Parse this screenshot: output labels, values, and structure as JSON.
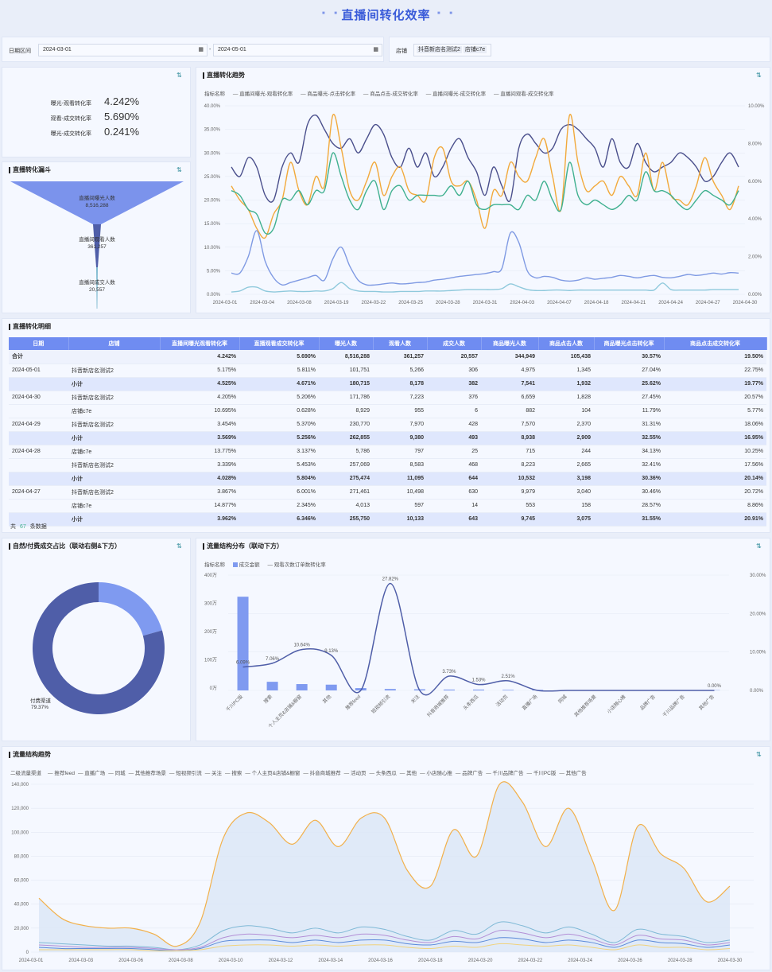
{
  "header": {
    "title": "直播间转化效率"
  },
  "filters": {
    "date_label": "日期区间",
    "date_start": "2024-03-01",
    "date_sep": "-",
    "date_end": "2024-05-01",
    "store_label": "店铺",
    "store_tags": [
      "抖音新店名测试2",
      "店铺c7e"
    ]
  },
  "kpis": [
    {
      "label": "曝光-观看转化率",
      "value": "4.242%"
    },
    {
      "label": "观看-成交转化率",
      "value": "5.690%"
    },
    {
      "label": "曝光-成交转化率",
      "value": "0.241%"
    }
  ],
  "funnel": {
    "title": "直播转化漏斗",
    "stages": [
      {
        "name": "直播间曝光人数",
        "value": "8,516,288"
      },
      {
        "name": "直播间观看人数",
        "value": "361,257"
      },
      {
        "name": "直播间成交人数",
        "value": "20,557"
      }
    ]
  },
  "trend": {
    "title": "直播转化趋势",
    "legend_prefix": "指标名称",
    "series_names": [
      "直播间曝光-观看转化率",
      "商品曝光-点击转化率",
      "商品点击-成交转化率",
      "直播间曝光-成交转化率",
      "直播间观看-成交转化率"
    ],
    "colors": [
      "#4a4f8c",
      "#f2a93b",
      "#3fb08f",
      "#7f9ae3",
      "#8fc9dc"
    ],
    "y_left": [
      "40.00%",
      "35.00%",
      "30.00%",
      "25.00%",
      "20.00%",
      "15.00%",
      "10.00%",
      "5.00%",
      "0.00%"
    ],
    "y_right": [
      "10.00%",
      "8.00%",
      "6.00%",
      "4.00%",
      "2.00%",
      "0.00%"
    ],
    "x_labels": [
      "2024-03-01",
      "2024-03-04",
      "2024-03-08",
      "2024-03-19",
      "2024-03-22",
      "2024-03-25",
      "2024-03-28",
      "2024-03-31",
      "2024-04-03",
      "2024-04-07",
      "2024-04-18",
      "2024-04-21",
      "2024-04-24",
      "2024-04-27",
      "2024-04-30"
    ]
  },
  "detail": {
    "title": "直播转化明细",
    "columns": [
      "日期",
      "店铺",
      "直播间曝光观看转化率",
      "直播观看成交转化率",
      "曝光人数",
      "观看人数",
      "成交人数",
      "商品曝光人数",
      "商品点击人数",
      "商品曝光点击转化率",
      "商品点击成交转化率"
    ],
    "rows": [
      {
        "type": "tot",
        "c": [
          "合计",
          "",
          "4.242%",
          "5.690%",
          "8,516,288",
          "361,257",
          "20,557",
          "344,949",
          "105,438",
          "30.57%",
          "19.50%"
        ]
      },
      {
        "type": "row",
        "c": [
          "2024-05-01",
          "抖音新店名测试2",
          "5.175%",
          "5.811%",
          "101,751",
          "5,266",
          "306",
          "4,975",
          "1,345",
          "27.04%",
          "22.75%"
        ]
      },
      {
        "type": "sub",
        "c": [
          "",
          "小计",
          "4.525%",
          "4.671%",
          "180,715",
          "8,178",
          "382",
          "7,541",
          "1,932",
          "25.62%",
          "19.77%"
        ]
      },
      {
        "type": "row",
        "c": [
          "2024-04-30",
          "抖音新店名测试2",
          "4.205%",
          "5.206%",
          "171,786",
          "7,223",
          "376",
          "6,659",
          "1,828",
          "27.45%",
          "20.57%"
        ]
      },
      {
        "type": "row",
        "c": [
          "",
          "店铺c7e",
          "10.695%",
          "0.628%",
          "8,929",
          "955",
          "6",
          "882",
          "104",
          "11.79%",
          "5.77%"
        ]
      },
      {
        "type": "row",
        "c": [
          "2024-04-29",
          "抖音新店名测试2",
          "3.454%",
          "5.370%",
          "230,770",
          "7,970",
          "428",
          "7,570",
          "2,370",
          "31.31%",
          "18.06%"
        ]
      },
      {
        "type": "sub",
        "c": [
          "",
          "小计",
          "3.569%",
          "5.256%",
          "262,855",
          "9,380",
          "493",
          "8,938",
          "2,909",
          "32.55%",
          "16.95%"
        ]
      },
      {
        "type": "row",
        "c": [
          "2024-04-28",
          "店铺c7e",
          "13.775%",
          "3.137%",
          "5,786",
          "797",
          "25",
          "715",
          "244",
          "34.13%",
          "10.25%"
        ]
      },
      {
        "type": "row",
        "c": [
          "",
          "抖音新店名测试2",
          "3.339%",
          "5.453%",
          "257,069",
          "8,583",
          "468",
          "8,223",
          "2,665",
          "32.41%",
          "17.56%"
        ]
      },
      {
        "type": "sub",
        "c": [
          "",
          "小计",
          "4.028%",
          "5.804%",
          "275,474",
          "11,095",
          "644",
          "10,532",
          "3,198",
          "30.36%",
          "20.14%"
        ]
      },
      {
        "type": "row",
        "c": [
          "2024-04-27",
          "抖音新店名测试2",
          "3.867%",
          "6.001%",
          "271,461",
          "10,498",
          "630",
          "9,979",
          "3,040",
          "30.46%",
          "20.72%"
        ]
      },
      {
        "type": "row",
        "c": [
          "",
          "店铺c7e",
          "14.877%",
          "2.345%",
          "4,013",
          "597",
          "14",
          "553",
          "158",
          "28.57%",
          "8.86%"
        ]
      },
      {
        "type": "sub",
        "c": [
          "",
          "小计",
          "3.962%",
          "6.346%",
          "255,750",
          "10,133",
          "643",
          "9,745",
          "3,075",
          "31.55%",
          "20.91%"
        ]
      }
    ],
    "footer_prefix": "共",
    "footer_count": "67",
    "footer_suffix": "条数据"
  },
  "donut": {
    "title": "自然/付费成交占比（联动右侧&下方）",
    "label": "付费渠道",
    "pct": "79.37%",
    "paid_fraction": 0.7937,
    "colors": [
      "#4f5ea8",
      "#7f9af0"
    ]
  },
  "flow": {
    "title": "流量结构分布（联动下方）",
    "legend_prefix": "指标名称",
    "legend_bar": "成交金额",
    "legend_line": "观看次数订单数转化率",
    "y_left": [
      "400万",
      "300万",
      "200万",
      "100万",
      "0万"
    ],
    "y_right": [
      "30.00%",
      "20.00%",
      "10.00%",
      "0.00%"
    ],
    "categories": [
      "千川PC版",
      "搜索",
      "个人主页&店铺&橱窗",
      "其他",
      "推荐feed",
      "短视频引流",
      "关注",
      "抖音商城推荐",
      "头条西瓜",
      "活动页",
      "直播广场",
      "同城",
      "其他推荐场景",
      "小店随心推",
      "品牌广告",
      "千川品牌广告",
      "其他广告"
    ],
    "bar_values": [
      325,
      30,
      22,
      20,
      8,
      5,
      4,
      3,
      3,
      2,
      2,
      1,
      1,
      1,
      1,
      1,
      1
    ],
    "line_values": [
      6.09,
      7.06,
      10.64,
      9.13,
      0,
      27.82,
      0,
      3.73,
      1.53,
      2.51,
      0,
      0,
      0,
      0,
      0,
      0,
      0
    ],
    "line_labels": [
      "6.09%",
      "7.06%",
      "10.64%",
      "9.13%",
      "",
      "27.82%",
      "",
      "3.73%",
      "1.53%",
      "2.51%",
      "",
      "",
      "",
      "",
      "",
      "",
      "0.00%"
    ]
  },
  "struct": {
    "title": "流量结构趋势",
    "legend": [
      "二级流量渠道",
      "推荐feed",
      "直播广场",
      "同城",
      "其他推荐场景",
      "短视频引流",
      "关注",
      "搜索",
      "个人主页&店铺&橱窗",
      "抖音商城推荐",
      "活动页",
      "头条西瓜",
      "其他",
      "小店随心推",
      "品牌广告",
      "千川品牌广告",
      "千川PC版",
      "其他广告"
    ],
    "y": [
      "140,000",
      "120,000",
      "100,000",
      "80,000",
      "60,000",
      "40,000",
      "20,000",
      "0"
    ],
    "x": [
      "2024-03-01",
      "2024-03-03",
      "2024-03-06",
      "2024-03-08",
      "2024-03-10",
      "2024-03-12",
      "2024-03-14",
      "2024-03-16",
      "2024-03-18",
      "2024-03-20",
      "2024-03-22",
      "2024-03-24",
      "2024-03-26",
      "2024-03-28",
      "2024-03-30"
    ]
  }
}
